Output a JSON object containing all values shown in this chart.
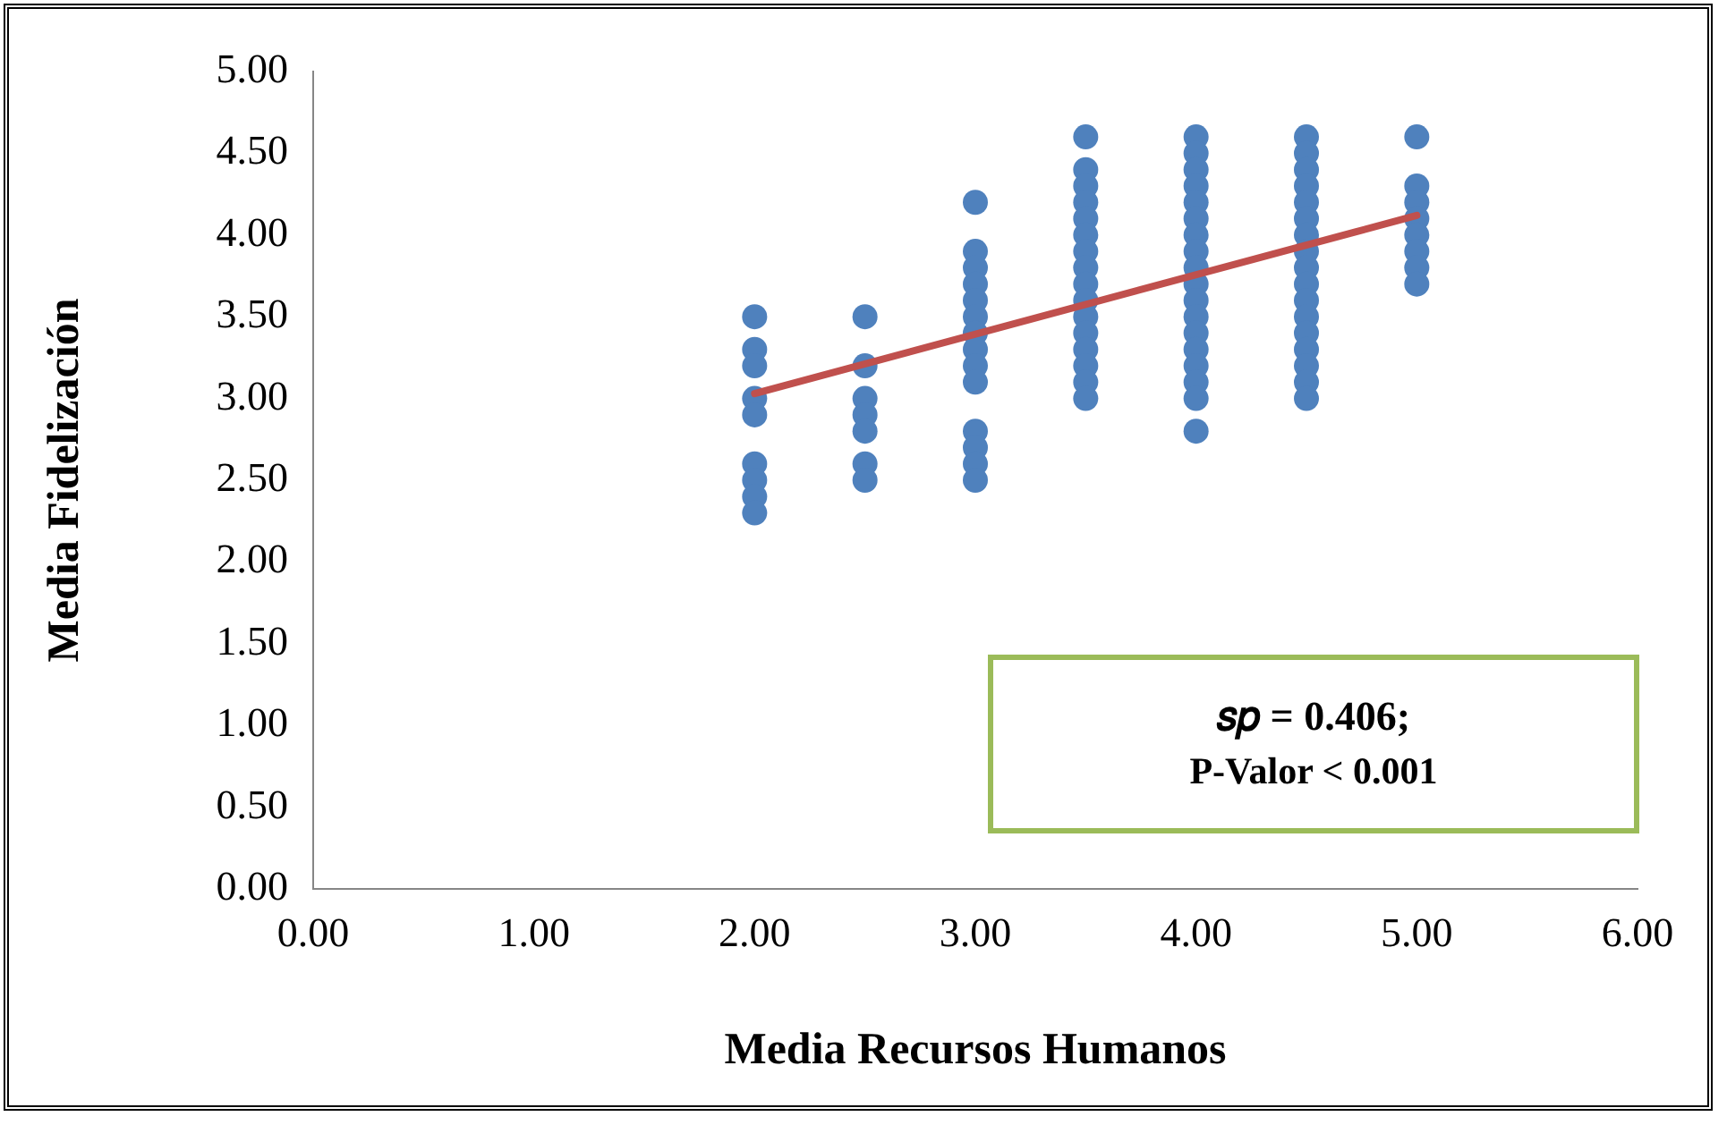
{
  "chart_data": {
    "type": "scatter",
    "xlabel": "Media Recursos Humanos",
    "ylabel": "Media Fidelización",
    "xlim": [
      0,
      6
    ],
    "xticks": [
      {
        "value": 0,
        "label": "0.00"
      },
      {
        "value": 1,
        "label": "1.00"
      },
      {
        "value": 2,
        "label": "2.00"
      },
      {
        "value": 3,
        "label": "3.00"
      },
      {
        "value": 4,
        "label": "4.00"
      },
      {
        "value": 5,
        "label": "5.00"
      },
      {
        "value": 6,
        "label": "6.00"
      }
    ],
    "ylim": [
      0,
      5
    ],
    "yticks": [
      {
        "value": 0,
        "label": "0.00"
      },
      {
        "value": 0.5,
        "label": "0.50"
      },
      {
        "value": 1,
        "label": "1.00"
      },
      {
        "value": 1.5,
        "label": "1.50"
      },
      {
        "value": 2,
        "label": "2.00"
      },
      {
        "value": 2.5,
        "label": "2.50"
      },
      {
        "value": 3,
        "label": "3.00"
      },
      {
        "value": 3.5,
        "label": "3.50"
      },
      {
        "value": 4,
        "label": "4.00"
      },
      {
        "value": 4.5,
        "label": "4.50"
      },
      {
        "value": 5,
        "label": "5.00"
      }
    ],
    "grid": false,
    "legend": false,
    "marker": "circle",
    "annotations": [
      "𝑠𝑝 = 0.406;",
      "P-Valor < 0.001"
    ],
    "series": [
      {
        "type": "scatter",
        "color": "#4f81bd",
        "x": [
          2,
          2,
          2,
          2,
          2,
          2,
          2,
          2,
          2,
          2.5,
          2.5,
          2.5,
          2.5,
          2.5,
          2.5,
          2.5,
          3,
          3,
          3,
          3,
          3,
          3,
          3,
          3,
          3,
          3,
          3,
          3,
          3,
          3,
          3.5,
          3.5,
          3.5,
          3.5,
          3.5,
          3.5,
          3.5,
          3.5,
          3.5,
          3.5,
          3.5,
          3.5,
          3.5,
          3.5,
          3.5,
          3.5,
          4,
          4,
          4,
          4,
          4,
          4,
          4,
          4,
          4,
          4,
          4,
          4,
          4,
          4,
          4,
          4,
          4,
          4,
          4.5,
          4.5,
          4.5,
          4.5,
          4.5,
          4.5,
          4.5,
          4.5,
          4.5,
          4.5,
          4.5,
          4.5,
          4.5,
          4.5,
          4.5,
          4.5,
          4.5,
          5,
          5,
          5,
          5,
          5,
          5,
          5,
          5
        ],
        "values": [
          3.5,
          3.3,
          3.2,
          3.0,
          2.9,
          2.6,
          2.5,
          2.4,
          2.3,
          3.5,
          3.2,
          3.0,
          2.9,
          2.8,
          2.6,
          2.5,
          4.2,
          3.9,
          3.8,
          3.7,
          3.6,
          3.5,
          3.4,
          3.3,
          3.2,
          3.1,
          2.8,
          2.7,
          2.6,
          2.5,
          4.6,
          4.4,
          4.3,
          4.2,
          4.1,
          4.0,
          3.9,
          3.8,
          3.7,
          3.6,
          3.5,
          3.4,
          3.3,
          3.2,
          3.1,
          3.0,
          4.6,
          4.5,
          4.4,
          4.3,
          4.2,
          4.1,
          4.0,
          3.9,
          3.8,
          3.7,
          3.6,
          3.5,
          3.4,
          3.3,
          3.2,
          3.1,
          3.0,
          2.8,
          4.6,
          4.5,
          4.4,
          4.3,
          4.2,
          4.1,
          4.0,
          3.9,
          3.8,
          3.7,
          3.6,
          3.5,
          3.4,
          3.3,
          3.2,
          3.1,
          3.0,
          4.6,
          4.3,
          4.2,
          4.1,
          4.0,
          3.9,
          3.8,
          3.7
        ]
      },
      {
        "type": "line",
        "color": "#c0504d",
        "marker": "none",
        "line_style": "solid",
        "x": [
          2,
          5
        ],
        "values": [
          3.03,
          4.12
        ]
      }
    ]
  }
}
